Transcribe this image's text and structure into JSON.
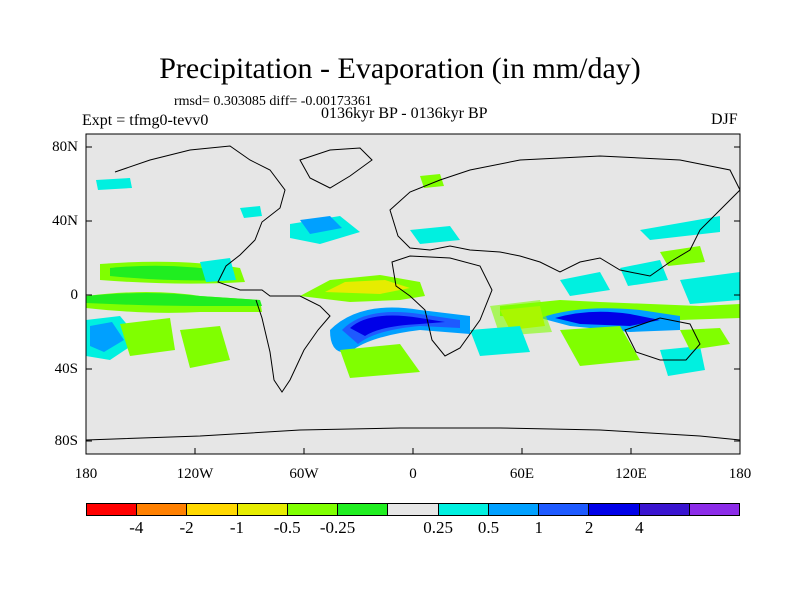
{
  "title": "Precipitation - Evaporation (in mm/day)",
  "stats": "rmsd= 0.303085 diff= -0.00173361",
  "period": "0136kyr BP - 0136kyr BP",
  "expt": "Expt = tfmg0-tevv0",
  "season": "DJF",
  "lat_labels": [
    "80N",
    "40N",
    "0",
    "40S",
    "80S"
  ],
  "lon_labels": [
    "180",
    "120W",
    "60W",
    "0",
    "60E",
    "120E",
    "180"
  ],
  "colorbar": {
    "colors": [
      "#ff0000",
      "#ff8000",
      "#ffd800",
      "#e6ec00",
      "#80ff00",
      "#20ee20",
      "#e6e6e6",
      "#00f0e0",
      "#00a0ff",
      "#1e5aff",
      "#0000e8",
      "#3a14d0",
      "#8c2ce8"
    ],
    "labels": [
      "-4",
      "-2",
      "-1",
      "-0.5",
      "-0.25",
      "0.25",
      "0.5",
      "1",
      "2",
      "4"
    ]
  },
  "colors": {
    "land_background": "#e6e6e6",
    "coastline": "#000000"
  }
}
